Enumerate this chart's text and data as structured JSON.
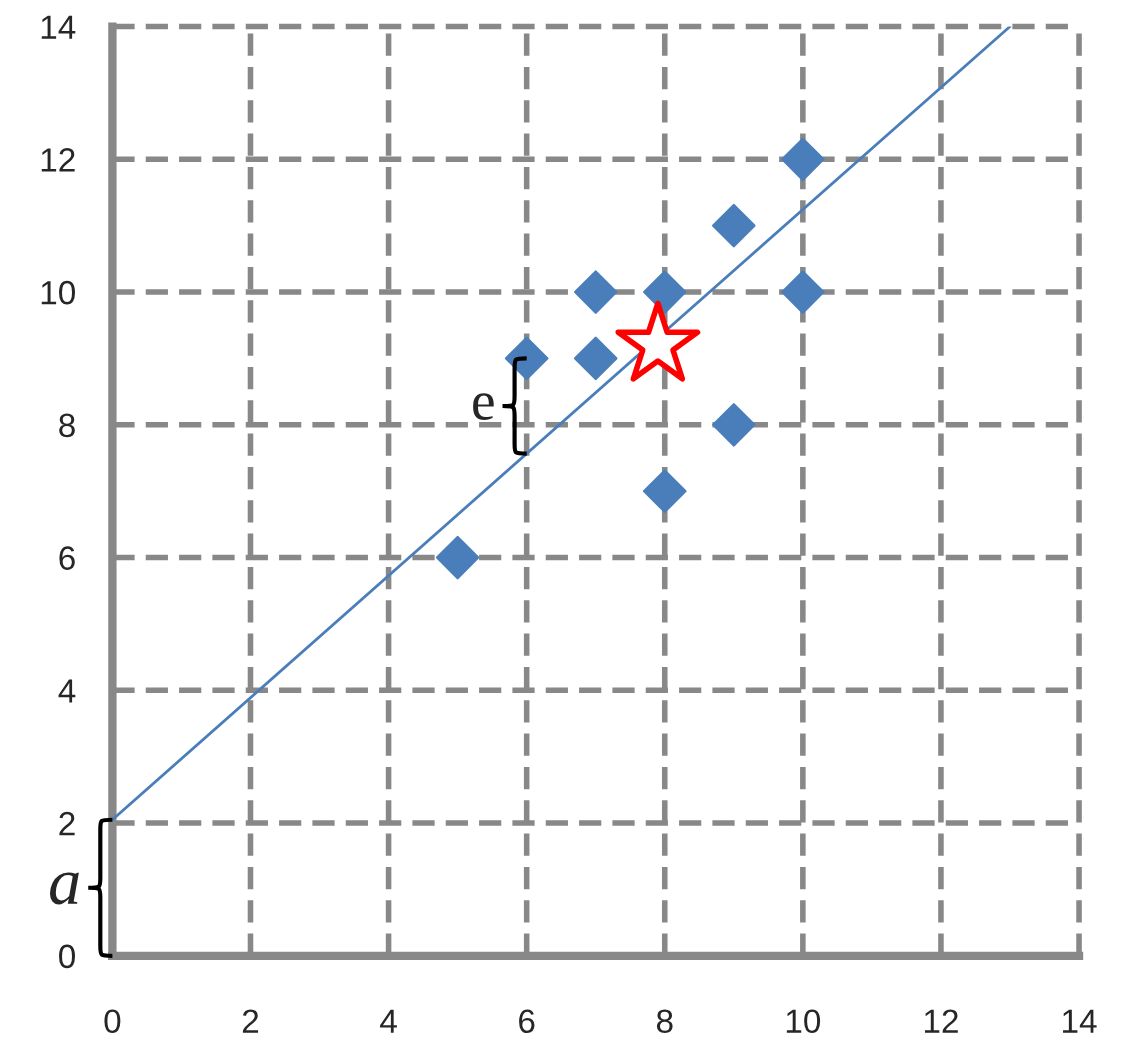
{
  "chart_data": {
    "type": "scatter",
    "x": [
      5,
      6,
      7,
      7,
      8,
      8,
      9,
      9,
      10,
      10
    ],
    "series": [
      {
        "marker": "diamond",
        "color": "#4a7ebb",
        "values": [
          6,
          9,
          10,
          9,
          10,
          7,
          11,
          8,
          12,
          10
        ]
      },
      {
        "type": "scatter",
        "marker": "star",
        "color": "#ff0000",
        "x": [
          7.9
        ],
        "values": [
          9.2
        ]
      },
      {
        "type": "line",
        "marker": "none",
        "line_style": "solid",
        "color": "#4a7ebb",
        "x": [
          0,
          13
        ],
        "values": [
          2.05,
          14
        ]
      }
    ],
    "annotations": [
      "e",
      "a"
    ],
    "xlim": [
      0,
      14
    ],
    "ylim": [
      0,
      14
    ],
    "xticks": [
      0,
      2,
      4,
      6,
      8,
      10,
      12,
      14
    ],
    "yticks": [
      0,
      2,
      4,
      6,
      8,
      10,
      12,
      14
    ],
    "grid": true,
    "legend": false
  }
}
